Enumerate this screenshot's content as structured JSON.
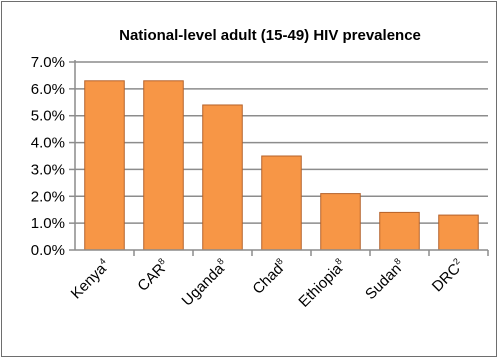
{
  "chart_data": {
    "type": "bar",
    "title": "National-level adult (15-49)  HIV prevalence",
    "xlabel": "",
    "ylabel": "",
    "ylim": [
      0,
      7
    ],
    "y_ticks": [
      "0.0%",
      "1.0%",
      "2.0%",
      "3.0%",
      "4.0%",
      "5.0%",
      "6.0%",
      "7.0%"
    ],
    "grid": true,
    "categories": [
      {
        "label": "Kenya",
        "sup": "4"
      },
      {
        "label": "CAR",
        "sup": "8"
      },
      {
        "label": "Uganda",
        "sup": "8"
      },
      {
        "label": "Chad",
        "sup": "8"
      },
      {
        "label": "Ethiopia",
        "sup": "8"
      },
      {
        "label": "Sudan",
        "sup": "8"
      },
      {
        "label": "DRC",
        "sup": "2"
      }
    ],
    "values": [
      6.3,
      6.3,
      5.4,
      3.5,
      2.1,
      1.4,
      1.3
    ],
    "colors": {
      "bar_fill": "#f79646",
      "bar_stroke": "#b5622a",
      "grid": "#8c8c8c",
      "axis": "#8c8c8c"
    }
  }
}
